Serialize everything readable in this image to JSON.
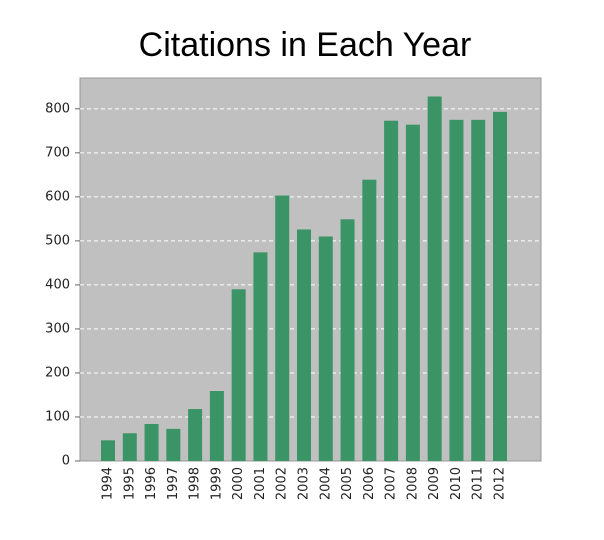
{
  "chart_data": {
    "type": "bar",
    "title": "Citations in Each Year",
    "categories": [
      "1994",
      "1995",
      "1996",
      "1997",
      "1998",
      "1999",
      "2000",
      "2001",
      "2002",
      "2003",
      "2004",
      "2005",
      "2006",
      "2007",
      "2008",
      "2009",
      "2010",
      "2011",
      "2012"
    ],
    "values": [
      47,
      63,
      84,
      73,
      118,
      159,
      390,
      474,
      603,
      526,
      510,
      549,
      639,
      773,
      764,
      828,
      775,
      775,
      793
    ],
    "color": "#3a9466",
    "ylim": [
      0,
      870
    ],
    "yticks": [
      0,
      100,
      200,
      300,
      400,
      500,
      600,
      700,
      800
    ],
    "grid": true
  }
}
